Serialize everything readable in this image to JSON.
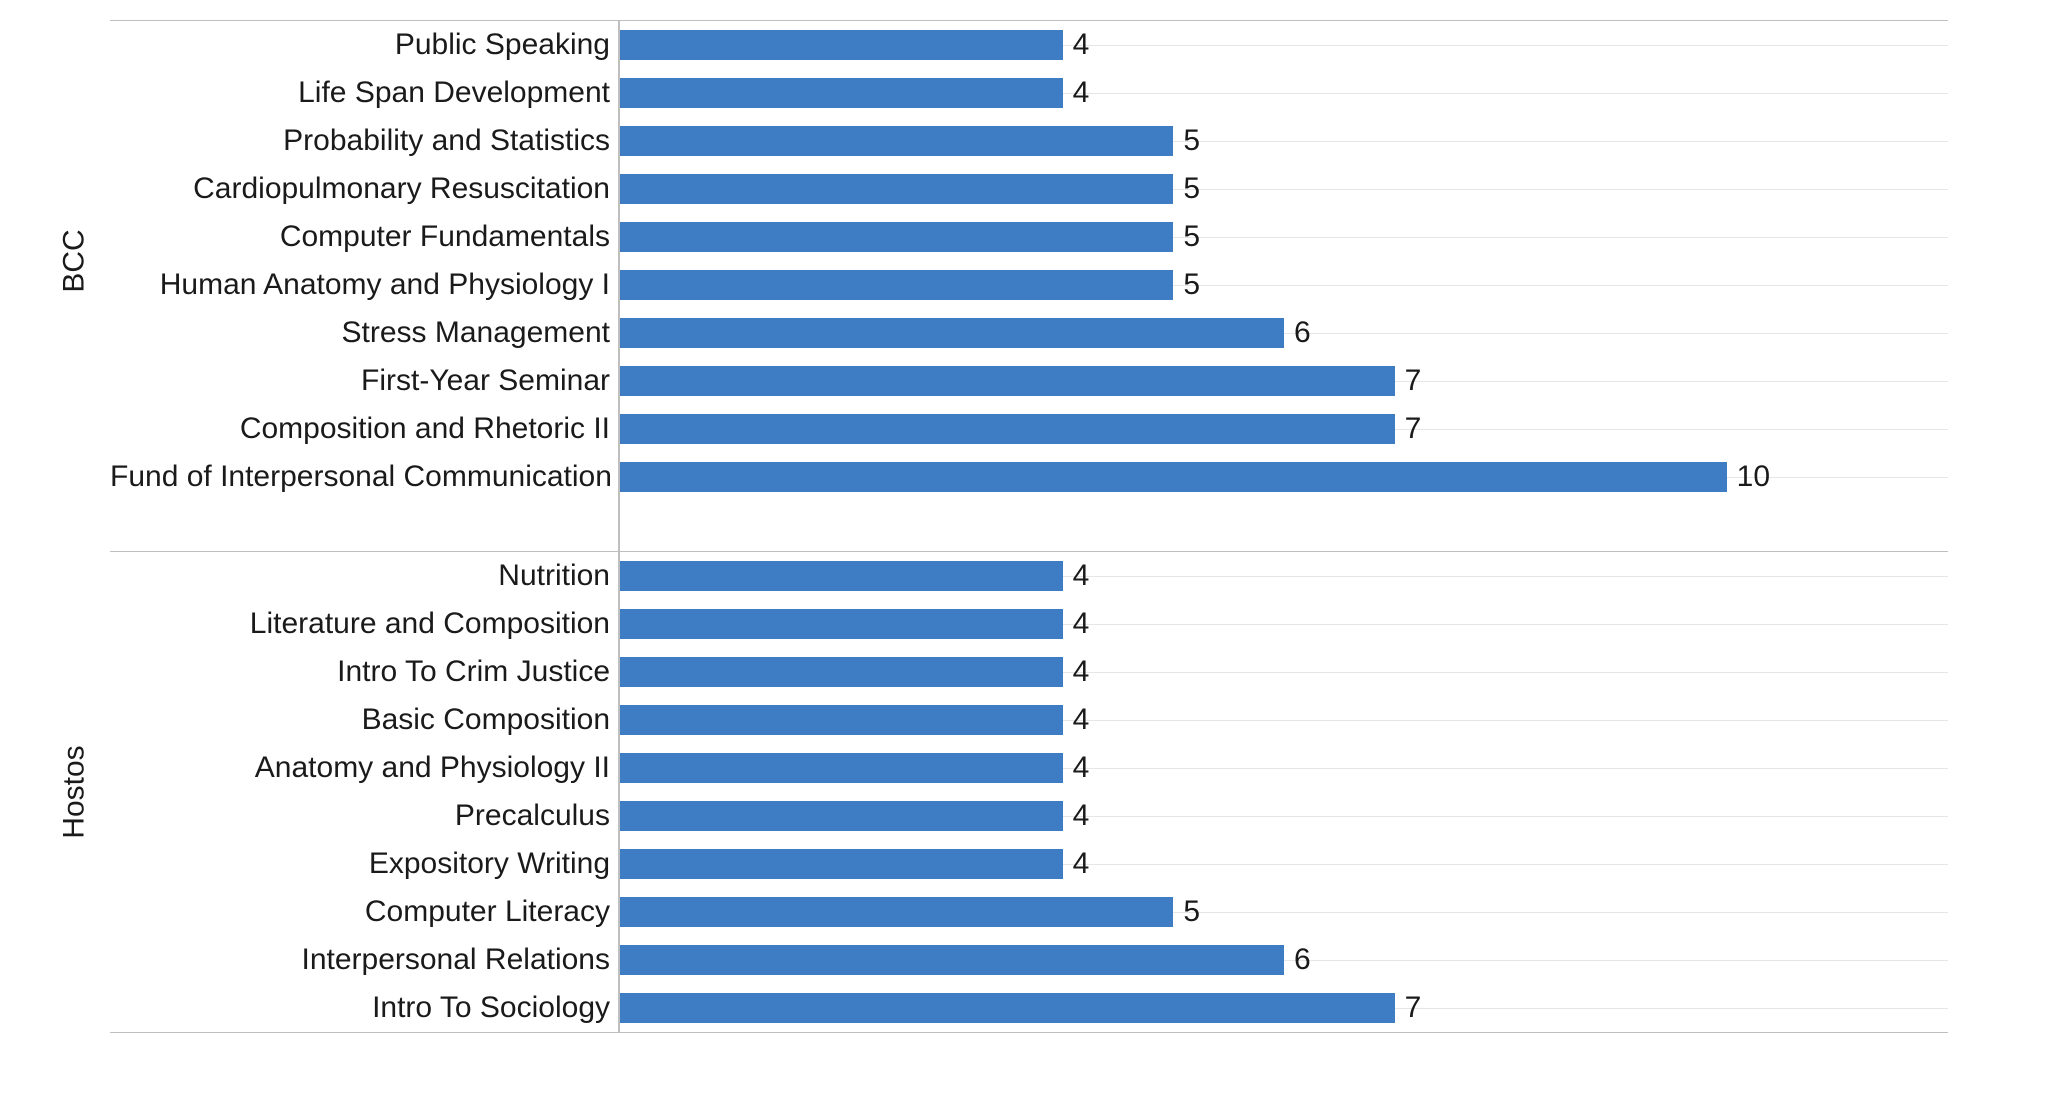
{
  "chart": {
    "type": "bar",
    "orientation": "horizontal",
    "bar_color": "#3e7cc4",
    "gridline_color": "#e6e6e6",
    "axis_color": "#bfbfbf",
    "background_color": "#ffffff",
    "text_color": "#1a1a1a",
    "label_fontsize": 30,
    "value_fontsize": 30,
    "group_label_fontsize": 30,
    "x_max": 12,
    "groups": [
      {
        "name": "BCC",
        "rows": [
          {
            "label": "Public Speaking",
            "value": 4
          },
          {
            "label": "Life Span Development",
            "value": 4
          },
          {
            "label": "Probability and Statistics",
            "value": 5
          },
          {
            "label": "Cardiopulmonary Resuscitation",
            "value": 5
          },
          {
            "label": "Computer Fundamentals",
            "value": 5
          },
          {
            "label": "Human Anatomy and Physiology I",
            "value": 5
          },
          {
            "label": "Stress Management",
            "value": 6
          },
          {
            "label": "First-Year Seminar",
            "value": 7
          },
          {
            "label": "Composition and Rhetoric II",
            "value": 7
          },
          {
            "label": "Fund of Interpersonal Communication",
            "value": 10
          }
        ]
      },
      {
        "name": "Hostos",
        "rows": [
          {
            "label": "Nutrition",
            "value": 4
          },
          {
            "label": "Literature and Composition",
            "value": 4
          },
          {
            "label": "Intro To Crim Justice",
            "value": 4
          },
          {
            "label": "Basic Composition",
            "value": 4
          },
          {
            "label": "Anatomy and Physiology II",
            "value": 4
          },
          {
            "label": "Precalculus",
            "value": 4
          },
          {
            "label": "Expository Writing",
            "value": 4
          },
          {
            "label": "Computer Literacy",
            "value": 5
          },
          {
            "label": "Interpersonal Relations",
            "value": 6
          },
          {
            "label": "Intro To Sociology",
            "value": 7
          }
        ]
      }
    ]
  }
}
